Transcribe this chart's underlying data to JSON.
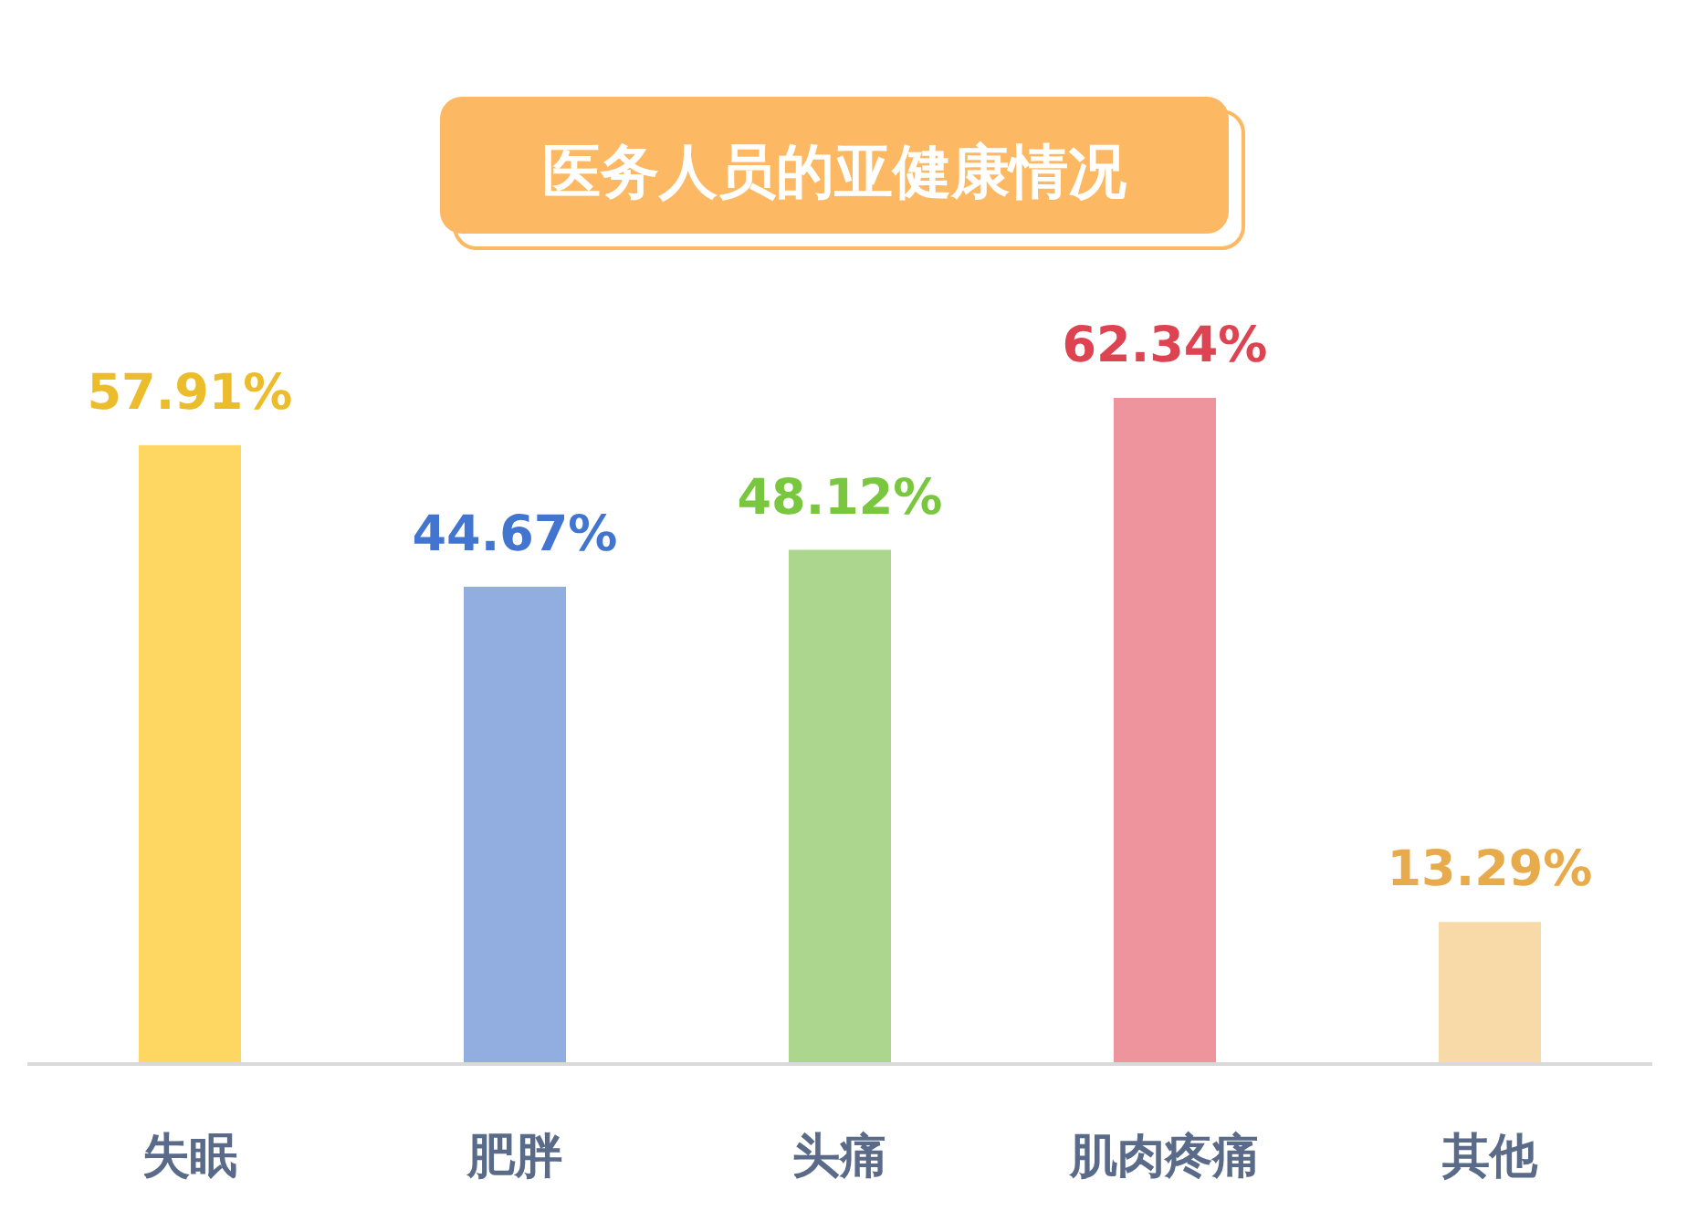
{
  "chart_data": {
    "type": "bar",
    "title": "医务人员的亚健康情况",
    "categories": [
      "失眠",
      "肥胖",
      "头痛",
      "肌肉疼痛",
      "其他"
    ],
    "values": [
      57.91,
      44.67,
      48.12,
      62.34,
      13.29
    ],
    "value_labels": [
      "57.91%",
      "44.67%",
      "48.12%",
      "62.34%",
      "13.29%"
    ],
    "colors": [
      "#fdd762",
      "#92aee0",
      "#acd68d",
      "#ee949c",
      "#f8d9a8"
    ]
  }
}
